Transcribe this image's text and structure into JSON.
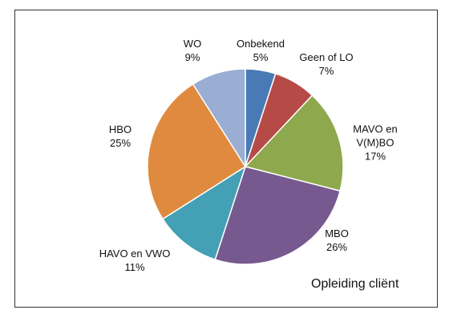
{
  "chart_data": {
    "type": "pie",
    "title": "Opleiding cliënt",
    "categories": [
      "Onbekend",
      "Geen of LO",
      "MAVO en V(M)BO",
      "MBO",
      "HAVO en VWO",
      "HBO",
      "WO"
    ],
    "values": [
      5,
      7,
      17,
      26,
      11,
      25,
      9
    ],
    "value_labels": [
      "5%",
      "7%",
      "17%",
      "26%",
      "11%",
      "25%",
      "9%"
    ],
    "colors": [
      "#4a7ab5",
      "#b64a47",
      "#8ea84e",
      "#76598f",
      "#43a0b5",
      "#df8a3f",
      "#9aadd3"
    ]
  }
}
